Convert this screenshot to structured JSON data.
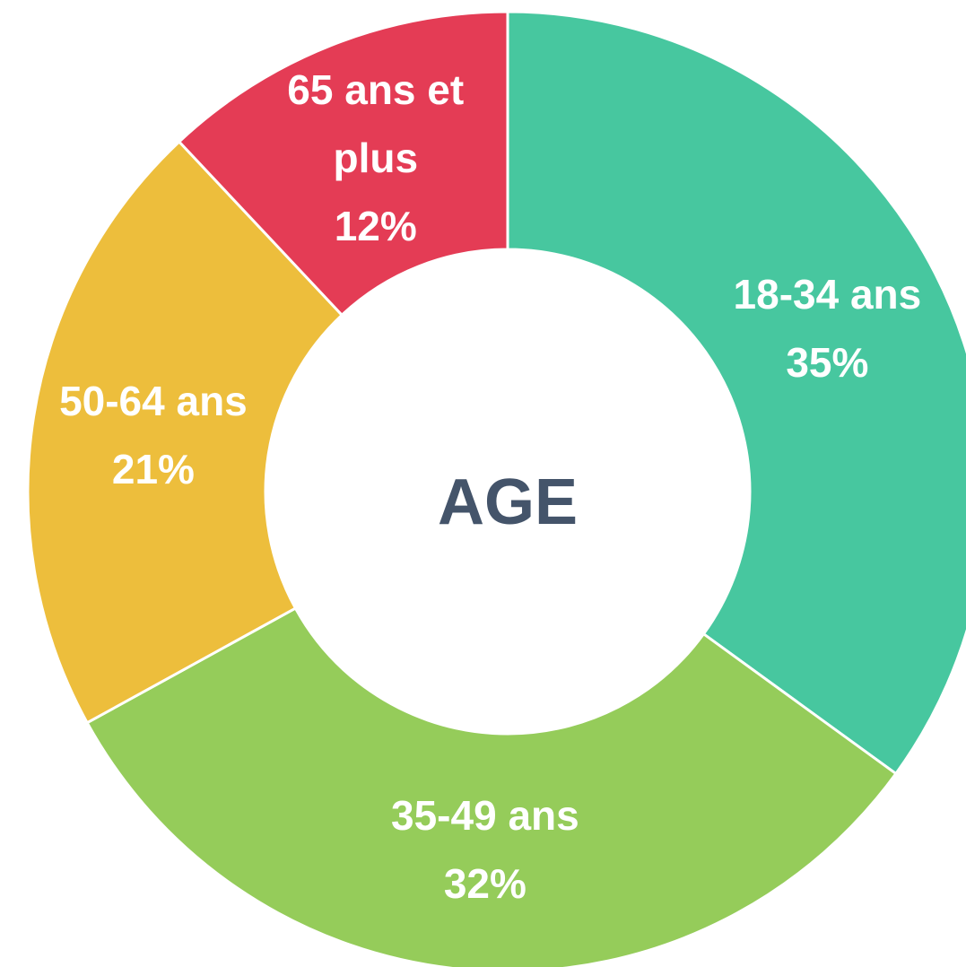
{
  "chart_data": {
    "type": "donut",
    "title": "AGE",
    "categories": [
      "18-34 ans",
      "35-49 ans",
      "50-64 ans",
      "65 ans et plus"
    ],
    "values": [
      35,
      32,
      21,
      12
    ],
    "value_labels": [
      "35%",
      "32%",
      "21%",
      "12%"
    ],
    "colors": [
      "#47c79f",
      "#95cc5a",
      "#edbe3c",
      "#e43c55"
    ]
  }
}
